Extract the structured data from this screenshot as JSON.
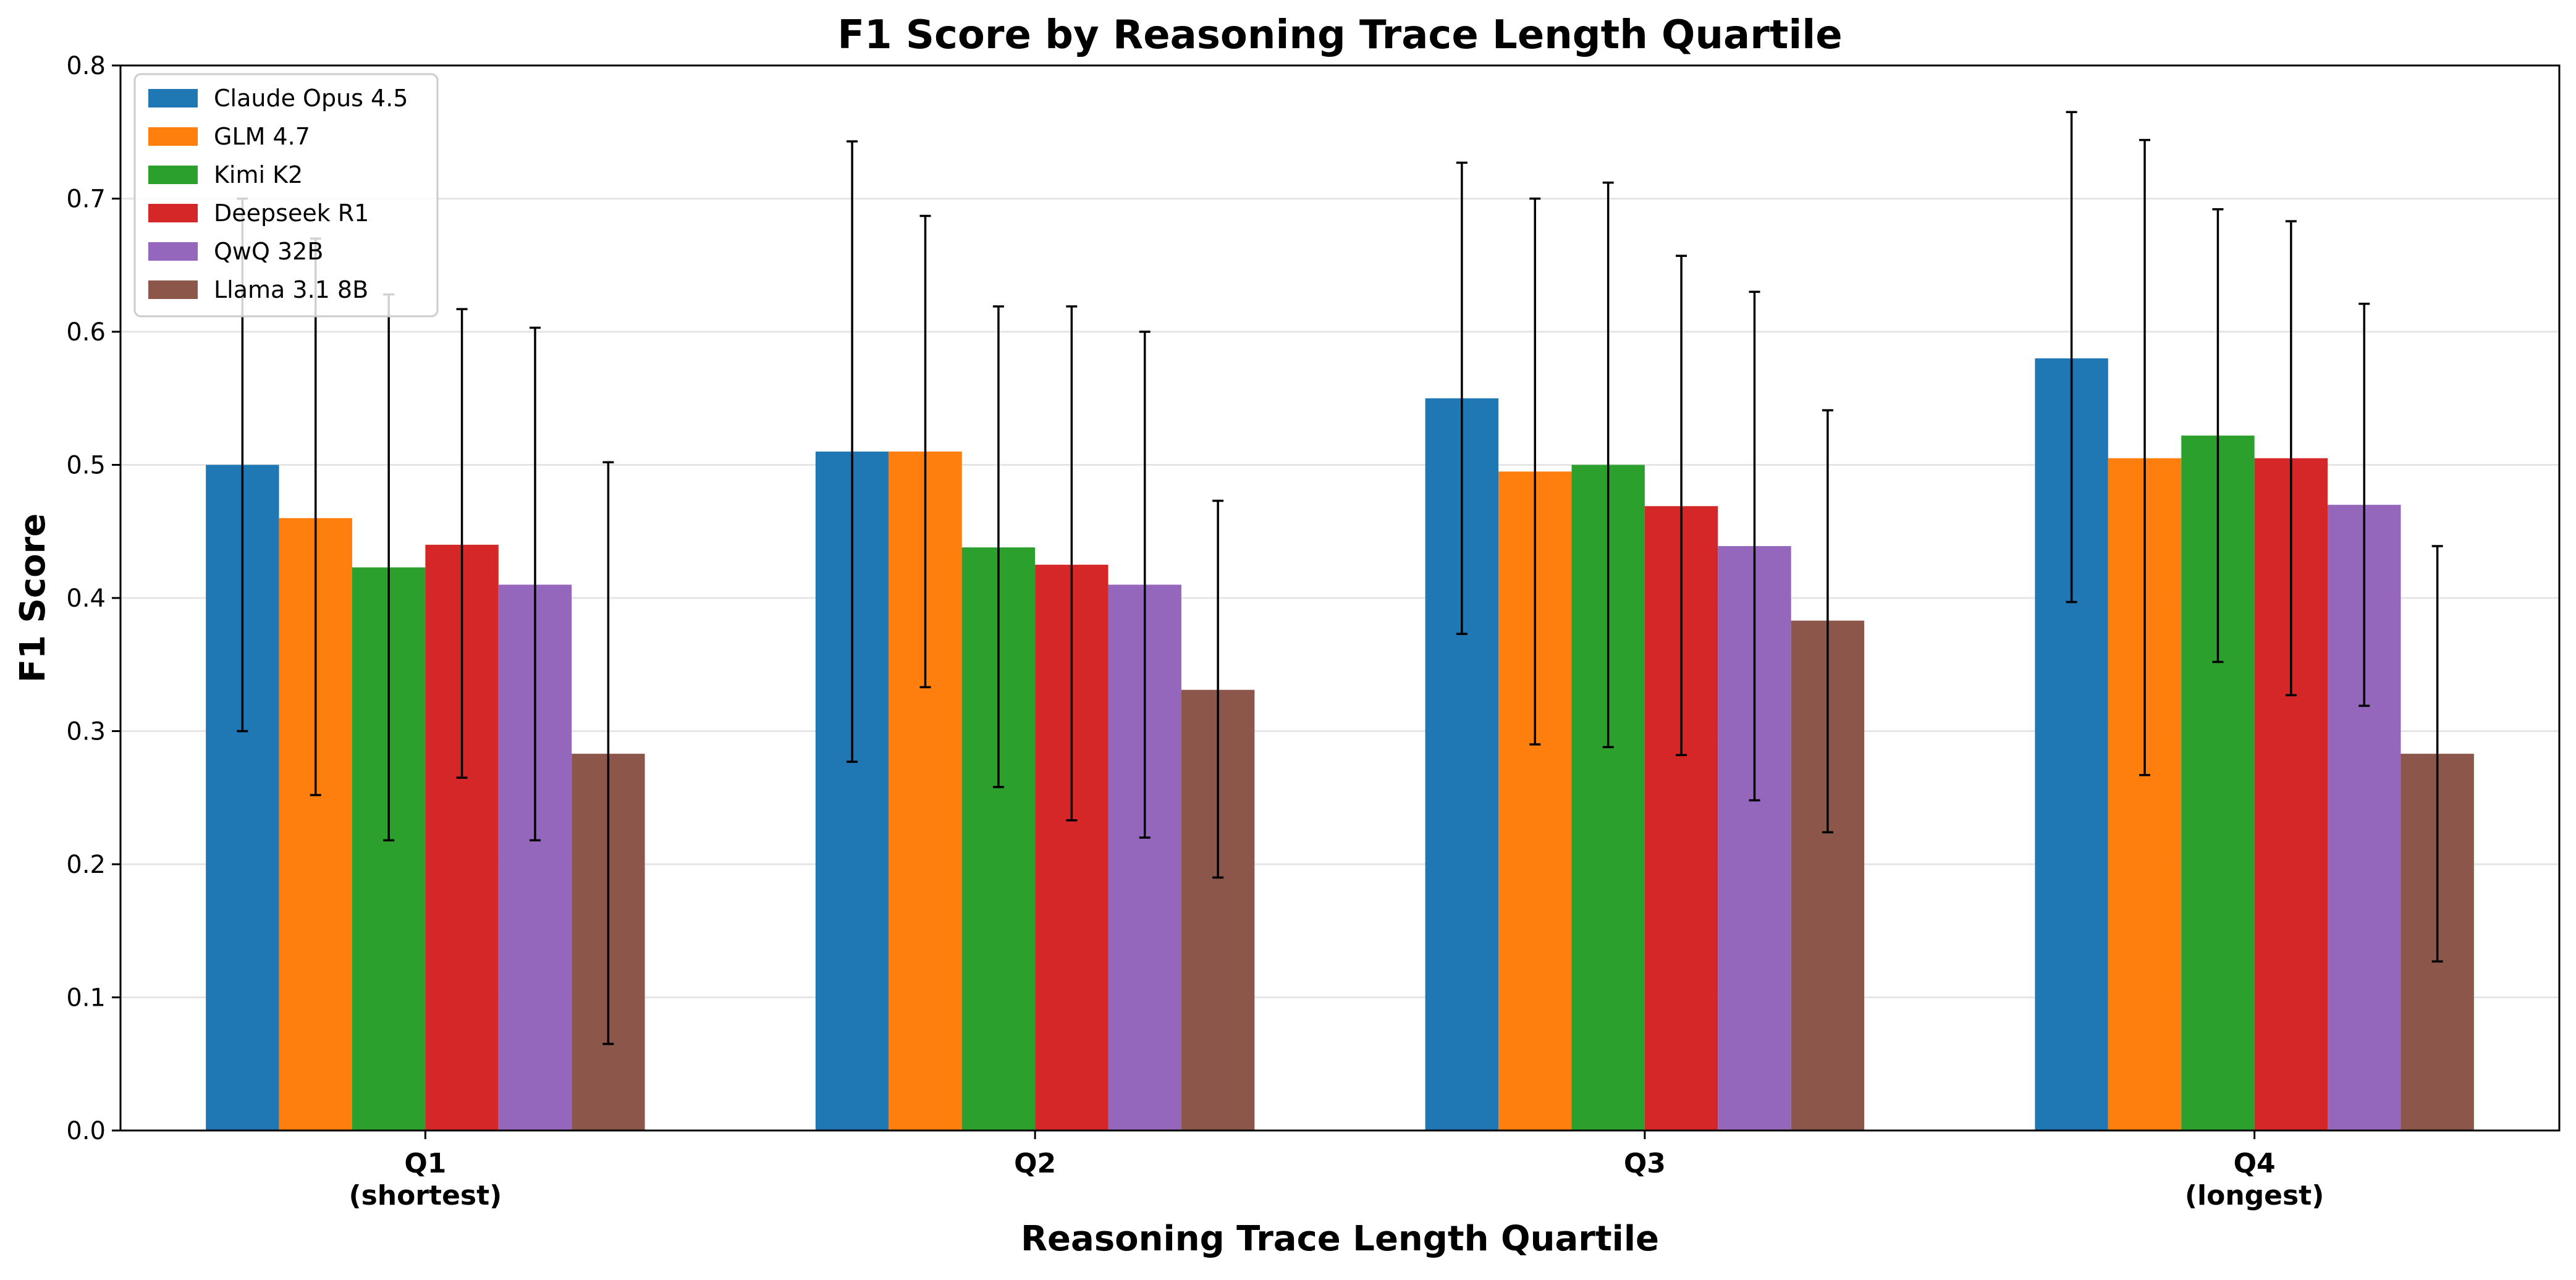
{
  "chart_data": {
    "type": "bar",
    "title": "F1 Score by Reasoning Trace Length Quartile",
    "xlabel": "Reasoning Trace Length Quartile",
    "ylabel": "F1 Score",
    "categories": [
      [
        "Q1",
        "(shortest)"
      ],
      [
        "Q2"
      ],
      [
        "Q3"
      ],
      [
        "Q4",
        "(longest)"
      ]
    ],
    "ylim": [
      0,
      0.8
    ],
    "yticks": [
      "0.0",
      "0.1",
      "0.2",
      "0.3",
      "0.4",
      "0.5",
      "0.6",
      "0.7",
      "0.8"
    ],
    "grid": "y",
    "legend_position": "top-left",
    "error_bars": true,
    "series": [
      {
        "name": "Claude Opus 4.5",
        "color": "#1f77b4",
        "values": [
          0.5,
          0.51,
          0.55,
          0.58
        ],
        "err_low": [
          0.3,
          0.277,
          0.373,
          0.397
        ],
        "err_high": [
          0.7,
          0.743,
          0.727,
          0.765
        ]
      },
      {
        "name": "GLM 4.7",
        "color": "#ff7f0e",
        "values": [
          0.46,
          0.51,
          0.495,
          0.505
        ],
        "err_low": [
          0.252,
          0.333,
          0.29,
          0.267
        ],
        "err_high": [
          0.67,
          0.687,
          0.7,
          0.744
        ]
      },
      {
        "name": "Kimi K2",
        "color": "#2ca02c",
        "values": [
          0.423,
          0.438,
          0.5,
          0.522
        ],
        "err_low": [
          0.218,
          0.258,
          0.288,
          0.352
        ],
        "err_high": [
          0.628,
          0.619,
          0.712,
          0.692
        ]
      },
      {
        "name": "Deepseek R1",
        "color": "#d62728",
        "values": [
          0.44,
          0.425,
          0.469,
          0.505
        ],
        "err_low": [
          0.265,
          0.233,
          0.282,
          0.327
        ],
        "err_high": [
          0.617,
          0.619,
          0.657,
          0.683
        ]
      },
      {
        "name": "QwQ 32B",
        "color": "#9467bd",
        "values": [
          0.41,
          0.41,
          0.439,
          0.47
        ],
        "err_low": [
          0.218,
          0.22,
          0.248,
          0.319
        ],
        "err_high": [
          0.603,
          0.6,
          0.63,
          0.621
        ]
      },
      {
        "name": "Llama 3.1 8B",
        "color": "#8c564b",
        "values": [
          0.283,
          0.331,
          0.383,
          0.283
        ],
        "err_low": [
          0.065,
          0.19,
          0.224,
          0.127
        ],
        "err_high": [
          0.502,
          0.473,
          0.541,
          0.439
        ]
      }
    ]
  }
}
